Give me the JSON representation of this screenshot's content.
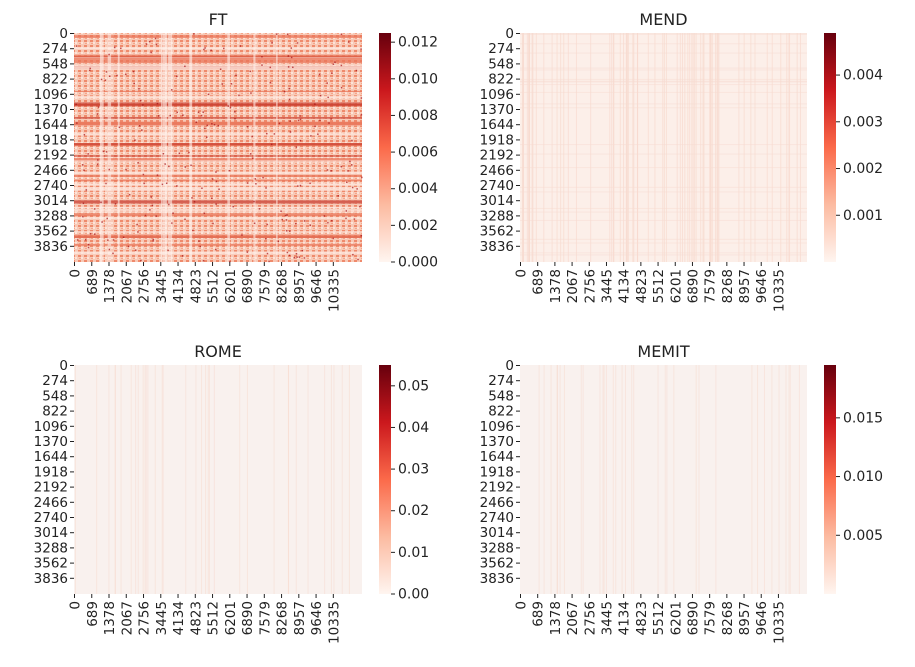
{
  "chart_data": [
    {
      "type": "heatmap",
      "title": "FT",
      "y_ticks": [
        "0",
        "274",
        "548",
        "822",
        "1096",
        "1370",
        "1644",
        "1918",
        "2192",
        "2466",
        "2740",
        "3014",
        "3288",
        "3562",
        "3836"
      ],
      "x_ticks": [
        "0",
        "689",
        "1378",
        "2067",
        "2756",
        "3445",
        "4134",
        "4823",
        "5512",
        "6201",
        "6890",
        "7579",
        "8268",
        "8957",
        "9646",
        "10335"
      ],
      "colorbar": {
        "range": [
          0,
          0.0125
        ],
        "ticks": [
          "0.000",
          "0.002",
          "0.004",
          "0.006",
          "0.008",
          "0.010",
          "0.012"
        ],
        "tick_values": [
          0,
          0.002,
          0.004,
          0.006,
          0.008,
          0.01,
          0.012
        ]
      },
      "colormap": "Reds",
      "intensity_level": "high"
    },
    {
      "type": "heatmap",
      "title": "MEND",
      "y_ticks": [
        "0",
        "274",
        "548",
        "822",
        "1096",
        "1370",
        "1644",
        "1918",
        "2192",
        "2466",
        "2740",
        "3014",
        "3288",
        "3562",
        "3836"
      ],
      "x_ticks": [
        "0",
        "689",
        "1378",
        "2067",
        "2756",
        "3445",
        "4134",
        "4823",
        "5512",
        "6201",
        "6890",
        "7579",
        "8268",
        "8957",
        "9646",
        "10335"
      ],
      "colorbar": {
        "range": [
          0,
          0.0049
        ],
        "ticks": [
          "0.001",
          "0.002",
          "0.003",
          "0.004"
        ],
        "tick_values": [
          0.001,
          0.002,
          0.003,
          0.004
        ]
      },
      "colormap": "Reds",
      "intensity_level": "low"
    },
    {
      "type": "heatmap",
      "title": "ROME",
      "y_ticks": [
        "0",
        "274",
        "548",
        "822",
        "1096",
        "1370",
        "1644",
        "1918",
        "2192",
        "2466",
        "2740",
        "3014",
        "3288",
        "3562",
        "3836"
      ],
      "x_ticks": [
        "0",
        "689",
        "1378",
        "2067",
        "2756",
        "3445",
        "4134",
        "4823",
        "5512",
        "6201",
        "6890",
        "7579",
        "8268",
        "8957",
        "9646",
        "10335"
      ],
      "colorbar": {
        "range": [
          0,
          0.055
        ],
        "ticks": [
          "0.00",
          "0.01",
          "0.02",
          "0.03",
          "0.04",
          "0.05"
        ],
        "tick_values": [
          0,
          0.01,
          0.02,
          0.03,
          0.04,
          0.05
        ]
      },
      "colormap": "Reds",
      "intensity_level": "very-low"
    },
    {
      "type": "heatmap",
      "title": "MEMIT",
      "y_ticks": [
        "0",
        "274",
        "548",
        "822",
        "1096",
        "1370",
        "1644",
        "1918",
        "2192",
        "2466",
        "2740",
        "3014",
        "3288",
        "3562",
        "3836"
      ],
      "x_ticks": [
        "0",
        "689",
        "1378",
        "2067",
        "2756",
        "3445",
        "4134",
        "4823",
        "5512",
        "6201",
        "6890",
        "7579",
        "8268",
        "8957",
        "9646",
        "10335"
      ],
      "colorbar": {
        "range": [
          0,
          0.0195
        ],
        "ticks": [
          "0.005",
          "0.010",
          "0.015"
        ],
        "tick_values": [
          0.005,
          0.01,
          0.015
        ]
      },
      "colormap": "Reds",
      "intensity_level": "very-low"
    }
  ]
}
